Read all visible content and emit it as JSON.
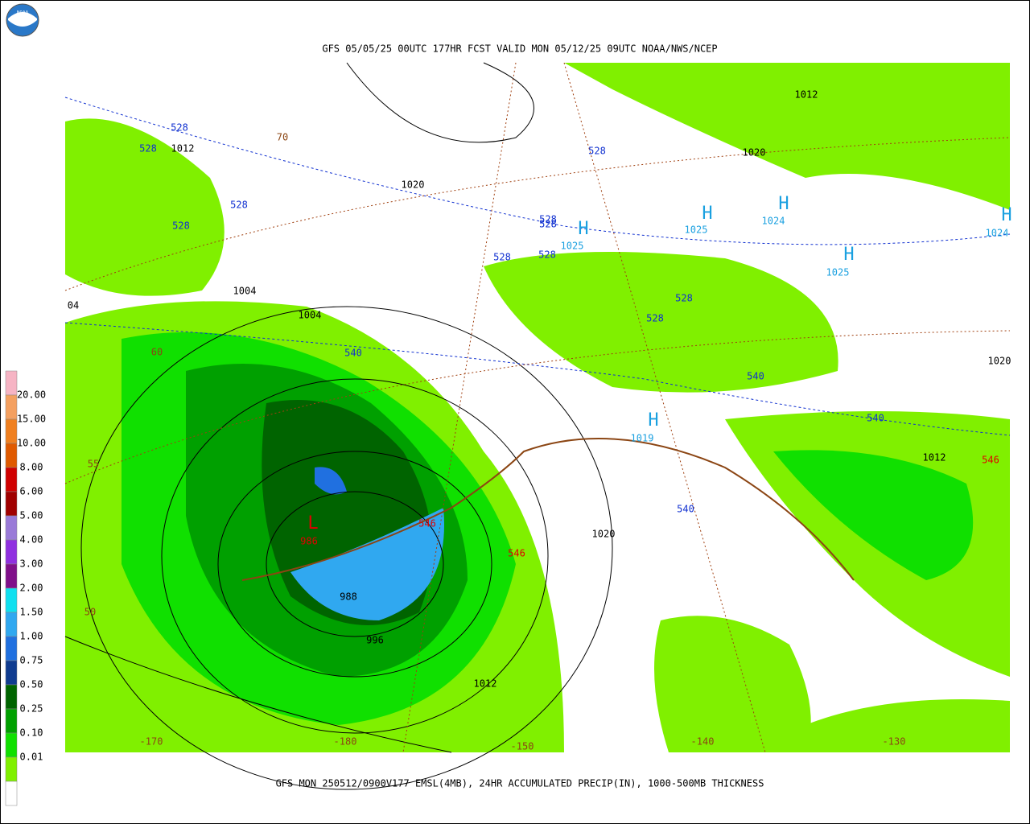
{
  "header": {
    "title": "GFS 05/05/25 00UTC 177HR FCST VALID MON 05/12/25 09UTC NOAA/NWS/NCEP",
    "logo": "NOAA"
  },
  "footer": {
    "caption": "GFS MON 250512/0900V177 EMSL(4MB), 24HR ACCUMULATED PRECIP(IN), 1000-500MB THICKNESS"
  },
  "legend": {
    "labels": [
      "20.00",
      "15.00",
      "10.00",
      "8.00",
      "6.00",
      "5.00",
      "4.00",
      "3.00",
      "2.00",
      "1.50",
      "1.00",
      "0.75",
      "0.50",
      "0.25",
      "0.10",
      "0.01"
    ],
    "colors": [
      "#f6b4c4",
      "#f4a060",
      "#f08020",
      "#e05a00",
      "#d00000",
      "#a00000",
      "#9a7ad8",
      "#9030e0",
      "#80108a",
      "#10e0f0",
      "#30a8f0",
      "#2070e0",
      "#103c90",
      "#006400",
      "#00a000",
      "#10e000",
      "#80f000",
      "#ffffff"
    ]
  },
  "map": {
    "isobar_labels": {
      "color": "#000000",
      "labels": [
        "1012",
        "1020",
        "1004",
        "1004",
        "04",
        "988",
        "996",
        "1012",
        "1020",
        "1012",
        "1020",
        "1020",
        "1012"
      ]
    },
    "thickness_labels": {
      "color": "#1030d0",
      "labels": [
        "528",
        "528",
        "528",
        "528",
        "528",
        "528",
        "528",
        "528",
        "528",
        "528",
        "528",
        "540",
        "540",
        "540",
        "540"
      ]
    },
    "high_markers": {
      "color": "#1aa0e0",
      "labels": [
        "H",
        "H",
        "H",
        "H",
        "H",
        "H"
      ]
    },
    "high_pressures": {
      "color": "#1aa0e0",
      "labels": [
        "1025",
        "1025",
        "1024",
        "1025",
        "1019",
        "1024"
      ]
    },
    "grid_labels": {
      "color": "#8b4513",
      "labels": [
        "70",
        "60",
        "55",
        "50",
        "-170",
        "-180",
        "-150",
        "-140",
        "-130"
      ]
    },
    "low_labels": {
      "color": "#e00000",
      "labels": [
        "L",
        "986",
        "546",
        "546",
        "546"
      ]
    }
  }
}
